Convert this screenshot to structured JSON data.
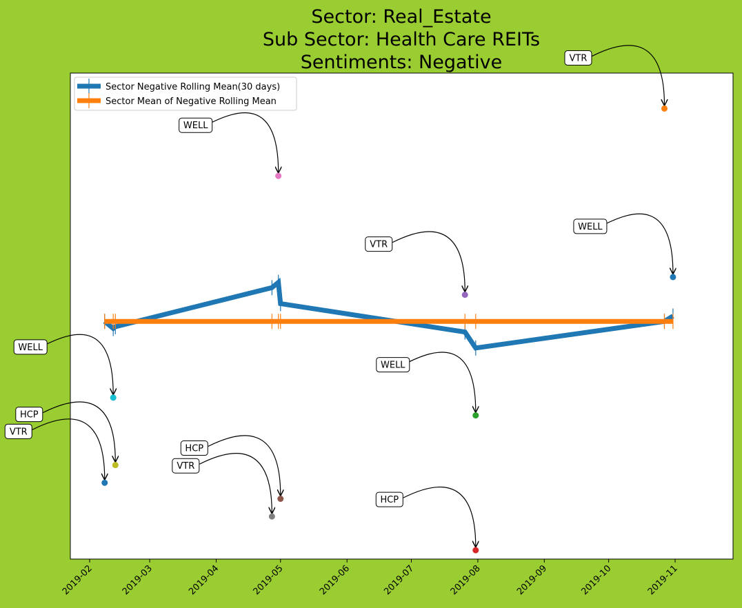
{
  "colors": {
    "background": "#9acd32",
    "plot_background": "#ffffff",
    "rolling_line": "#1f77b4",
    "mean_line": "#ff7f0e"
  },
  "chart_data": {
    "type": "line",
    "title_lines": [
      "Sector:  Real_Estate",
      "Sub Sector:  Health Care REITs",
      "Sentiments:  Negative"
    ],
    "xlabel": "",
    "ylabel": "",
    "x_ticks": [
      "2019-02",
      "2019-03",
      "2019-04",
      "2019-05",
      "2019-06",
      "2019-07",
      "2019-08",
      "2019-09",
      "2019-10",
      "2019-11"
    ],
    "xlim": [
      "2019-01-23",
      "2019-11-28"
    ],
    "ylim": [
      -0.67,
      0.7
    ],
    "y_tick_labels_shown": false,
    "grid": false,
    "legend": {
      "position": "top-left",
      "entries": [
        "Sector Negative Rolling Mean(30 days)",
        "Sector Mean of Negative Rolling Mean"
      ]
    },
    "series": [
      {
        "name": "Sector Negative Rolling Mean(30 days)",
        "color": "#1f77b4",
        "points": [
          {
            "x": "2019-02-08",
            "y": 0.0
          },
          {
            "x": "2019-02-12",
            "y": -0.02
          },
          {
            "x": "2019-02-13",
            "y": -0.015
          },
          {
            "x": "2019-04-27",
            "y": 0.095
          },
          {
            "x": "2019-04-30",
            "y": 0.11
          },
          {
            "x": "2019-05-01",
            "y": 0.05
          },
          {
            "x": "2019-07-26",
            "y": -0.03
          },
          {
            "x": "2019-07-31",
            "y": -0.075
          },
          {
            "x": "2019-10-27",
            "y": 0.0
          },
          {
            "x": "2019-10-31",
            "y": 0.015
          }
        ]
      },
      {
        "name": "Sector Mean of Negative Rolling Mean",
        "color": "#ff7f0e",
        "points": [
          {
            "x": "2019-02-08",
            "y": 0.0
          },
          {
            "x": "2019-02-12",
            "y": 0.0
          },
          {
            "x": "2019-02-13",
            "y": 0.0
          },
          {
            "x": "2019-04-27",
            "y": 0.0
          },
          {
            "x": "2019-04-30",
            "y": 0.0
          },
          {
            "x": "2019-05-01",
            "y": 0.0
          },
          {
            "x": "2019-07-26",
            "y": 0.0
          },
          {
            "x": "2019-07-31",
            "y": 0.0
          },
          {
            "x": "2019-10-27",
            "y": 0.0
          },
          {
            "x": "2019-10-31",
            "y": 0.0
          }
        ]
      }
    ],
    "annotated_points": [
      {
        "label": "VTR",
        "x": "2019-02-08",
        "y": -0.455,
        "color": "#1f77b4"
      },
      {
        "label": "WELL",
        "x": "2019-02-12",
        "y": -0.215,
        "color": "#17becf"
      },
      {
        "label": "HCP",
        "x": "2019-02-13",
        "y": -0.405,
        "color": "#bcbd22"
      },
      {
        "label": "VTR",
        "x": "2019-04-27",
        "y": -0.55,
        "color": "#7f7f7f"
      },
      {
        "label": "WELL",
        "x": "2019-04-30",
        "y": 0.41,
        "color": "#e377c2"
      },
      {
        "label": "HCP",
        "x": "2019-05-01",
        "y": -0.5,
        "color": "#8c564b"
      },
      {
        "label": "VTR",
        "x": "2019-07-26",
        "y": 0.075,
        "color": "#9467bd"
      },
      {
        "label": "HCP",
        "x": "2019-07-31",
        "y": -0.645,
        "color": "#d62728"
      },
      {
        "label": "WELL",
        "x": "2019-07-31",
        "y": -0.265,
        "color": "#2ca02c"
      },
      {
        "label": "VTR",
        "x": "2019-10-27",
        "y": 0.6,
        "color": "#ff7f0e"
      },
      {
        "label": "WELL",
        "x": "2019-10-31",
        "y": 0.125,
        "color": "#1f77b4"
      }
    ]
  }
}
